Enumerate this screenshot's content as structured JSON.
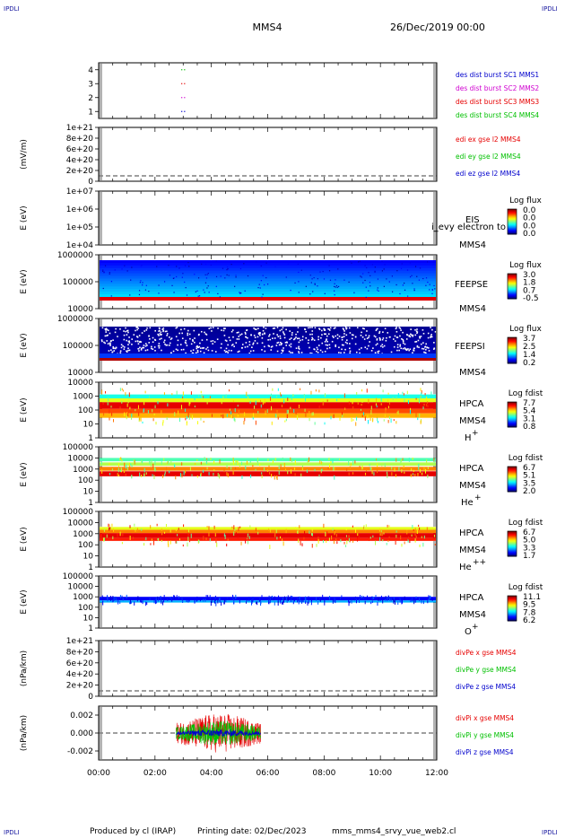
{
  "header": {
    "spacecraft": "MMS4",
    "datetime": "26/Dec/2019 00:00",
    "corner_label": "IPDLI"
  },
  "footer": {
    "producer": "Produced by cl (IRAP)",
    "printing_date": "Printing date: 02/Dec/2023",
    "script": "mms_mms4_srvy_vue_web2.cl"
  },
  "colors": {
    "red": "#e60000",
    "green": "#00c000",
    "blue": "#0000cc",
    "magenta": "#d000d0",
    "axis": "#000000"
  },
  "chart_data": [
    {
      "type": "scatter",
      "id": "burst",
      "ylim": [
        0.5,
        4.5
      ],
      "yticks": [
        "1",
        "2",
        "3",
        "4"
      ],
      "series": [
        {
          "name": "des dist burst SC1 MMS1",
          "color": "#0000cc",
          "y": 1,
          "x": [
            2.95,
            3.05
          ]
        },
        {
          "name": "des dist burst SC2 MMS2",
          "color": "#d000d0",
          "y": 2,
          "x": [
            2.95,
            3.05
          ]
        },
        {
          "name": "des dist burst SC3 MMS3",
          "color": "#e60000",
          "y": 3,
          "x": [
            2.95,
            3.05
          ]
        },
        {
          "name": "des dist burst SC4 MMS4",
          "color": "#00c000",
          "y": 4,
          "x": [
            2.95,
            3.05
          ]
        }
      ]
    },
    {
      "type": "line",
      "id": "edi",
      "ylabel": "(mV/m)",
      "yticks": [
        "1e+21",
        "8e+20",
        "6e+20",
        "4e+20",
        "2e+20",
        "0"
      ],
      "series": [
        {
          "name": "edi ex gse l2 MMS4",
          "color": "#e60000"
        },
        {
          "name": "edi ey gse l2 MMS4",
          "color": "#00c000"
        },
        {
          "name": "edi ez gse l2 MMS4",
          "color": "#0000cc"
        }
      ]
    },
    {
      "type": "heatmap",
      "id": "eis",
      "ylabel": "E (eV)",
      "yticks": [
        "1e+07",
        "1e+06",
        "1e+05",
        "1e+04"
      ],
      "scale": "log",
      "instrument": "EIS",
      "sc": "MMS4",
      "note": "i_evy electron to",
      "colorbar": {
        "title": "Log flux",
        "ticks": [
          "0.0",
          "0.0",
          "0.0",
          "0.0"
        ]
      }
    },
    {
      "type": "heatmap",
      "id": "feepse",
      "ylabel": "E (eV)",
      "yticks": [
        "1000000",
        "100000",
        "10000"
      ],
      "scale": "log",
      "instrument": "FEEPSE",
      "sc": "MMS4",
      "colorbar": {
        "title": "Log flux",
        "ticks": [
          "3.0",
          "1.8",
          "0.7",
          "-0.5"
        ]
      }
    },
    {
      "type": "heatmap",
      "id": "feepsi",
      "ylabel": "E (eV)",
      "yticks": [
        "1000000",
        "100000",
        "10000"
      ],
      "scale": "log",
      "instrument": "FEEPSI",
      "sc": "MMS4",
      "colorbar": {
        "title": "Log flux",
        "ticks": [
          "3.7",
          "2.5",
          "1.4",
          "0.2"
        ]
      }
    },
    {
      "type": "heatmap",
      "id": "hpca_h",
      "ylabel": "E (eV)",
      "yticks": [
        "10000",
        "1000",
        "100",
        "10",
        "1"
      ],
      "scale": "log",
      "instrument": "HPCA",
      "sc": "MMS4",
      "species": "H",
      "charge": "+",
      "colorbar": {
        "title": "Log fdist",
        "ticks": [
          "7.7",
          "5.4",
          "3.1",
          "0.8"
        ]
      }
    },
    {
      "type": "heatmap",
      "id": "hpca_he",
      "ylabel": "E (eV)",
      "yticks": [
        "100000",
        "10000",
        "1000",
        "100",
        "10",
        "1"
      ],
      "scale": "log",
      "instrument": "HPCA",
      "sc": "MMS4",
      "species": "He",
      "charge": "+",
      "colorbar": {
        "title": "Log fdist",
        "ticks": [
          "6.7",
          "5.1",
          "3.5",
          "2.0"
        ]
      }
    },
    {
      "type": "heatmap",
      "id": "hpca_hepp",
      "ylabel": "E (eV)",
      "yticks": [
        "100000",
        "10000",
        "1000",
        "100",
        "10",
        "1"
      ],
      "scale": "log",
      "instrument": "HPCA",
      "sc": "MMS4",
      "species": "He",
      "charge": "++",
      "colorbar": {
        "title": "Log fdist",
        "ticks": [
          "6.7",
          "5.0",
          "3.3",
          "1.7"
        ]
      }
    },
    {
      "type": "heatmap",
      "id": "hpca_o",
      "ylabel": "E (eV)",
      "yticks": [
        "100000",
        "10000",
        "1000",
        "100",
        "10",
        "1"
      ],
      "scale": "log",
      "instrument": "HPCA",
      "sc": "MMS4",
      "species": "O",
      "charge": "+",
      "colorbar": {
        "title": "Log fdist",
        "ticks": [
          "11.1",
          "9.5",
          "7.8",
          "6.2"
        ]
      }
    },
    {
      "type": "line",
      "id": "divpe",
      "ylabel": "(nPa/km)",
      "yticks": [
        "1e+21",
        "8e+20",
        "6e+20",
        "4e+20",
        "2e+20",
        "0"
      ],
      "series": [
        {
          "name": "divPe x gse MMS4",
          "color": "#e60000"
        },
        {
          "name": "divPe y gse MMS4",
          "color": "#00c000"
        },
        {
          "name": "divPe z gse MMS4",
          "color": "#0000cc"
        }
      ]
    },
    {
      "type": "line",
      "id": "divpi",
      "ylabel": "(nPa/km)",
      "ylim": [
        -0.003,
        0.003
      ],
      "yticks": [
        "0.002",
        "0.000",
        "-0.002"
      ],
      "data_span_hours": [
        2.75,
        5.75
      ],
      "series": [
        {
          "name": "divPi x gse MMS4",
          "color": "#e60000",
          "amplitude": 0.0022
        },
        {
          "name": "divPi y gse MMS4",
          "color": "#00c000",
          "amplitude": 0.0014
        },
        {
          "name": "divPi z gse MMS4",
          "color": "#0000cc",
          "amplitude": 0.0004
        }
      ]
    }
  ],
  "time_axis": {
    "range_hours": [
      0,
      12
    ],
    "ticks": [
      "00:00",
      "02:00",
      "04:00",
      "06:00",
      "08:00",
      "10:00",
      "12:00"
    ]
  }
}
